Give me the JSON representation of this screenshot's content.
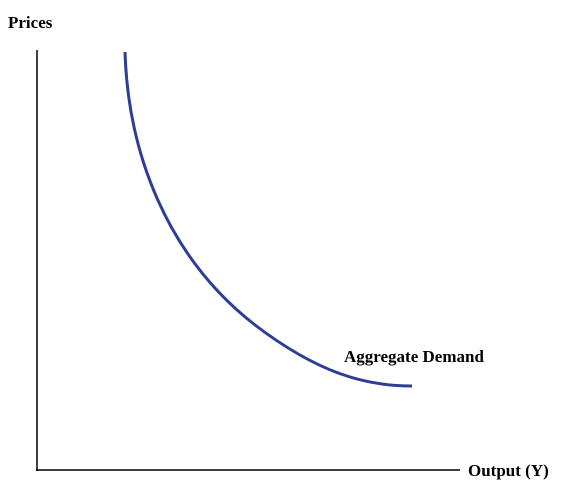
{
  "axes": {
    "y_label": "Prices",
    "x_label": "Output (Y)"
  },
  "curve": {
    "label": "Aggregate Demand"
  }
}
